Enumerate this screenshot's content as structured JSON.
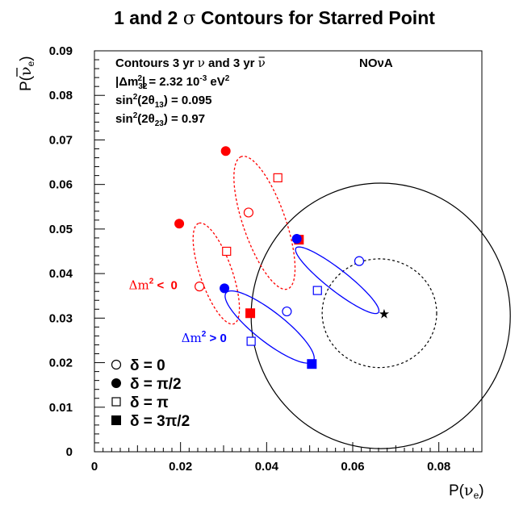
{
  "chart_data": {
    "type": "scatter",
    "title_parts": [
      "1 and 2 ",
      "σ",
      " Contours for Starred Point"
    ],
    "xlabel_parts": [
      "P(",
      "ν",
      "e",
      ")"
    ],
    "ylabel_parts": [
      "P(",
      "ν",
      "e",
      ")"
    ],
    "xlim": [
      0,
      0.09
    ],
    "ylim": [
      0,
      0.09
    ],
    "xticks": [
      {
        "v": 0,
        "label": "0"
      },
      {
        "v": 0.02,
        "label": "0.02"
      },
      {
        "v": 0.04,
        "label": "0.04"
      },
      {
        "v": 0.06,
        "label": "0.06"
      },
      {
        "v": 0.08,
        "label": "0.08"
      }
    ],
    "yticks": [
      {
        "v": 0,
        "label": "0"
      },
      {
        "v": 0.01,
        "label": "0.01"
      },
      {
        "v": 0.02,
        "label": "0.02"
      },
      {
        "v": 0.03,
        "label": "0.03"
      },
      {
        "v": 0.04,
        "label": "0.04"
      },
      {
        "v": 0.05,
        "label": "0.05"
      },
      {
        "v": 0.06,
        "label": "0.06"
      },
      {
        "v": 0.07,
        "label": "0.07"
      },
      {
        "v": 0.08,
        "label": "0.08"
      },
      {
        "v": 0.09,
        "label": "0.09"
      }
    ],
    "info": {
      "line1_parts": [
        "Contours 3 yr ",
        "ν",
        " and 3 yr ",
        "ν"
      ],
      "experiment": "NOνA",
      "line2_parts": [
        "|Δm",
        "32",
        "2",
        "| = 2.32 10",
        "-3",
        " eV",
        "2"
      ],
      "line3_parts": [
        "sin",
        "2",
        "(2θ",
        "13",
        ") = 0.095"
      ],
      "line4_parts": [
        "sin",
        "2",
        "(2θ",
        "23",
        ") = 0.97"
      ]
    },
    "legend": {
      "placement": "bottom-left",
      "entries": [
        {
          "marker": "open-circle",
          "label": "δ = 0"
        },
        {
          "marker": "filled-circle",
          "label": "δ = π/2"
        },
        {
          "marker": "open-square",
          "label": "δ = π"
        },
        {
          "marker": "filled-square",
          "label": "δ = 3π/2"
        }
      ]
    },
    "colors": {
      "normal": "#0000ff",
      "inverted": "#ff0000",
      "contour": "#000000"
    },
    "star_point": {
      "x": 0.0673,
      "y": 0.0311
    },
    "sigma_contours": [
      {
        "level": 1,
        "style": "dashed",
        "center": [
          0.0662,
          0.0311
        ],
        "rx": 0.0133,
        "ry": 0.0122
      },
      {
        "level": 2,
        "style": "solid",
        "center": [
          0.0665,
          0.0305
        ],
        "rx": 0.0301,
        "ry": 0.0298
      }
    ],
    "ellipses": [
      {
        "hierarchy": "inverted",
        "style": "dashed",
        "center": [
          0.0395,
          0.0514
        ],
        "a": 0.0158,
        "b": 0.0049,
        "angle_deg": 110
      },
      {
        "hierarchy": "inverted",
        "style": "dashed",
        "center": [
          0.0283,
          0.04
        ],
        "a": 0.012,
        "b": 0.0037,
        "angle_deg": 110
      },
      {
        "hierarchy": "normal",
        "style": "solid",
        "center": [
          0.0564,
          0.0385
        ],
        "a": 0.012,
        "b": 0.0024,
        "angle_deg": 143
      },
      {
        "hierarchy": "normal",
        "style": "solid",
        "center": [
          0.0407,
          0.028
        ],
        "a": 0.0127,
        "b": 0.0034,
        "angle_deg": 143
      }
    ],
    "markers": [
      {
        "hierarchy": "inverted",
        "delta": "π/2",
        "marker": "filled-circle",
        "x": 0.0305,
        "y": 0.0675
      },
      {
        "hierarchy": "inverted",
        "delta": "π",
        "marker": "open-square",
        "x": 0.0426,
        "y": 0.0615
      },
      {
        "hierarchy": "inverted",
        "delta": "0",
        "marker": "open-circle",
        "x": 0.0358,
        "y": 0.0537
      },
      {
        "hierarchy": "inverted",
        "delta": "3π/2",
        "marker": "filled-square",
        "x": 0.0475,
        "y": 0.0476
      },
      {
        "hierarchy": "inverted",
        "delta": "π/2",
        "marker": "filled-circle",
        "x": 0.0197,
        "y": 0.0512
      },
      {
        "hierarchy": "inverted",
        "delta": "π",
        "marker": "open-square",
        "x": 0.0307,
        "y": 0.045
      },
      {
        "hierarchy": "inverted",
        "delta": "0",
        "marker": "open-circle",
        "x": 0.0244,
        "y": 0.0371
      },
      {
        "hierarchy": "inverted",
        "delta": "3π/2",
        "marker": "filled-square",
        "x": 0.0362,
        "y": 0.0311
      },
      {
        "hierarchy": "normal",
        "delta": "π/2",
        "marker": "filled-circle",
        "x": 0.047,
        "y": 0.0478
      },
      {
        "hierarchy": "normal",
        "delta": "0",
        "marker": "open-circle",
        "x": 0.0615,
        "y": 0.0428
      },
      {
        "hierarchy": "normal",
        "delta": "π",
        "marker": "open-square",
        "x": 0.0518,
        "y": 0.0362
      },
      {
        "hierarchy": "normal",
        "delta": "π/2",
        "marker": "filled-circle",
        "x": 0.0302,
        "y": 0.0367
      },
      {
        "hierarchy": "normal",
        "delta": "0",
        "marker": "open-circle",
        "x": 0.0447,
        "y": 0.0315
      },
      {
        "hierarchy": "normal",
        "delta": "π",
        "marker": "open-square",
        "x": 0.0364,
        "y": 0.0248
      },
      {
        "hierarchy": "normal",
        "delta": "3π/2",
        "marker": "filled-square",
        "x": 0.0505,
        "y": 0.0197
      }
    ],
    "annotations": [
      {
        "hierarchy": "inverted",
        "text_parts": [
          "Δm",
          "2",
          " <  0"
        ],
        "x": 0.008,
        "y": 0.0365
      },
      {
        "hierarchy": "normal",
        "text_parts": [
          "Δm",
          "2",
          " > 0"
        ],
        "x": 0.0202,
        "y": 0.0246
      }
    ]
  }
}
